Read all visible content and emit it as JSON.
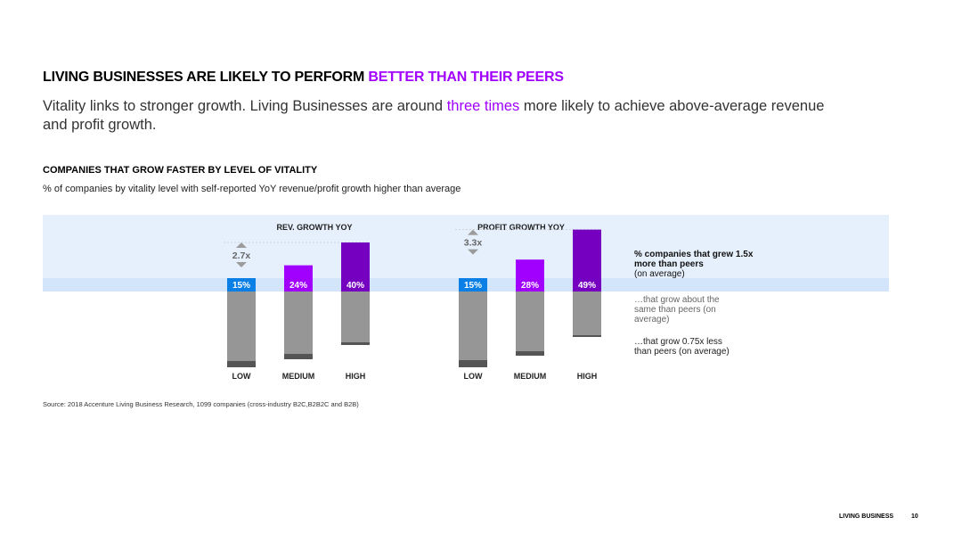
{
  "slide": {
    "title_main": "LIVING BUSINESSES ARE LIKELY TO PERFORM ",
    "title_highlight": "BETTER THAN THEIR PEERS",
    "subtitle_pre": "Vitality links to stronger growth. Living Businesses are around ",
    "subtitle_highlight": "three times",
    "subtitle_post": " more likely to achieve above-average revenue and profit growth.",
    "section_title": "COMPANIES THAT GROW FASTER BY LEVEL OF VITALITY",
    "section_subtitle": "% of companies by vitality level with self-reported YoY revenue/profit growth higher than average",
    "source": "Source: 2018 Accenture Living Business Research, 1099 companies (cross-industry B2C,B2B2C and B2B)",
    "footer_brand": "LIVING BUSINESS",
    "footer_page": "10"
  },
  "colors": {
    "accent": "#a100ff",
    "band": "#e6f0fd",
    "low_label": "#0a7fe6",
    "medium": "#a100ff",
    "high": "#7500c0",
    "about_same": "#969696",
    "less": "#555555",
    "arrow": "#9b9b9b"
  },
  "legend": {
    "grew_more_bold": "% companies that grew 1.5x more than peers",
    "grew_more_note": "(on average)",
    "about_same": "…that grow about the same than peers (on average)",
    "less": "…that grow 0.75x less than peers (on average)"
  },
  "chart_data": [
    {
      "type": "bar",
      "title": "REV. GROWTH YOY",
      "categories": [
        "LOW",
        "MEDIUM",
        "HIGH"
      ],
      "series": [
        {
          "name": "% companies that grew 1.5x more than peers",
          "values": [
            15,
            24,
            40
          ]
        },
        {
          "name": "…that grow about the same than peers",
          "values": [
            78,
            70,
            57
          ]
        },
        {
          "name": "…that grow 0.75x less than peers",
          "values": [
            7,
            6,
            3
          ]
        }
      ],
      "data_labels": [
        "15%",
        "24%",
        "40%"
      ],
      "multiplier_label": "2.7x",
      "stacked": true,
      "ylim": [
        0,
        100
      ]
    },
    {
      "type": "bar",
      "title": "PROFIT GROWTH YOY",
      "categories": [
        "LOW",
        "MEDIUM",
        "HIGH"
      ],
      "series": [
        {
          "name": "% companies that grew 1.5x more than peers",
          "values": [
            15,
            28,
            49
          ]
        },
        {
          "name": "…that grow about the same than peers",
          "values": [
            77,
            67,
            49
          ]
        },
        {
          "name": "…that grow 0.75x less than peers",
          "values": [
            8,
            5,
            2
          ]
        }
      ],
      "data_labels": [
        "15%",
        "28%",
        "49%"
      ],
      "multiplier_label": "3.3x",
      "stacked": true,
      "ylim": [
        0,
        100
      ]
    }
  ]
}
